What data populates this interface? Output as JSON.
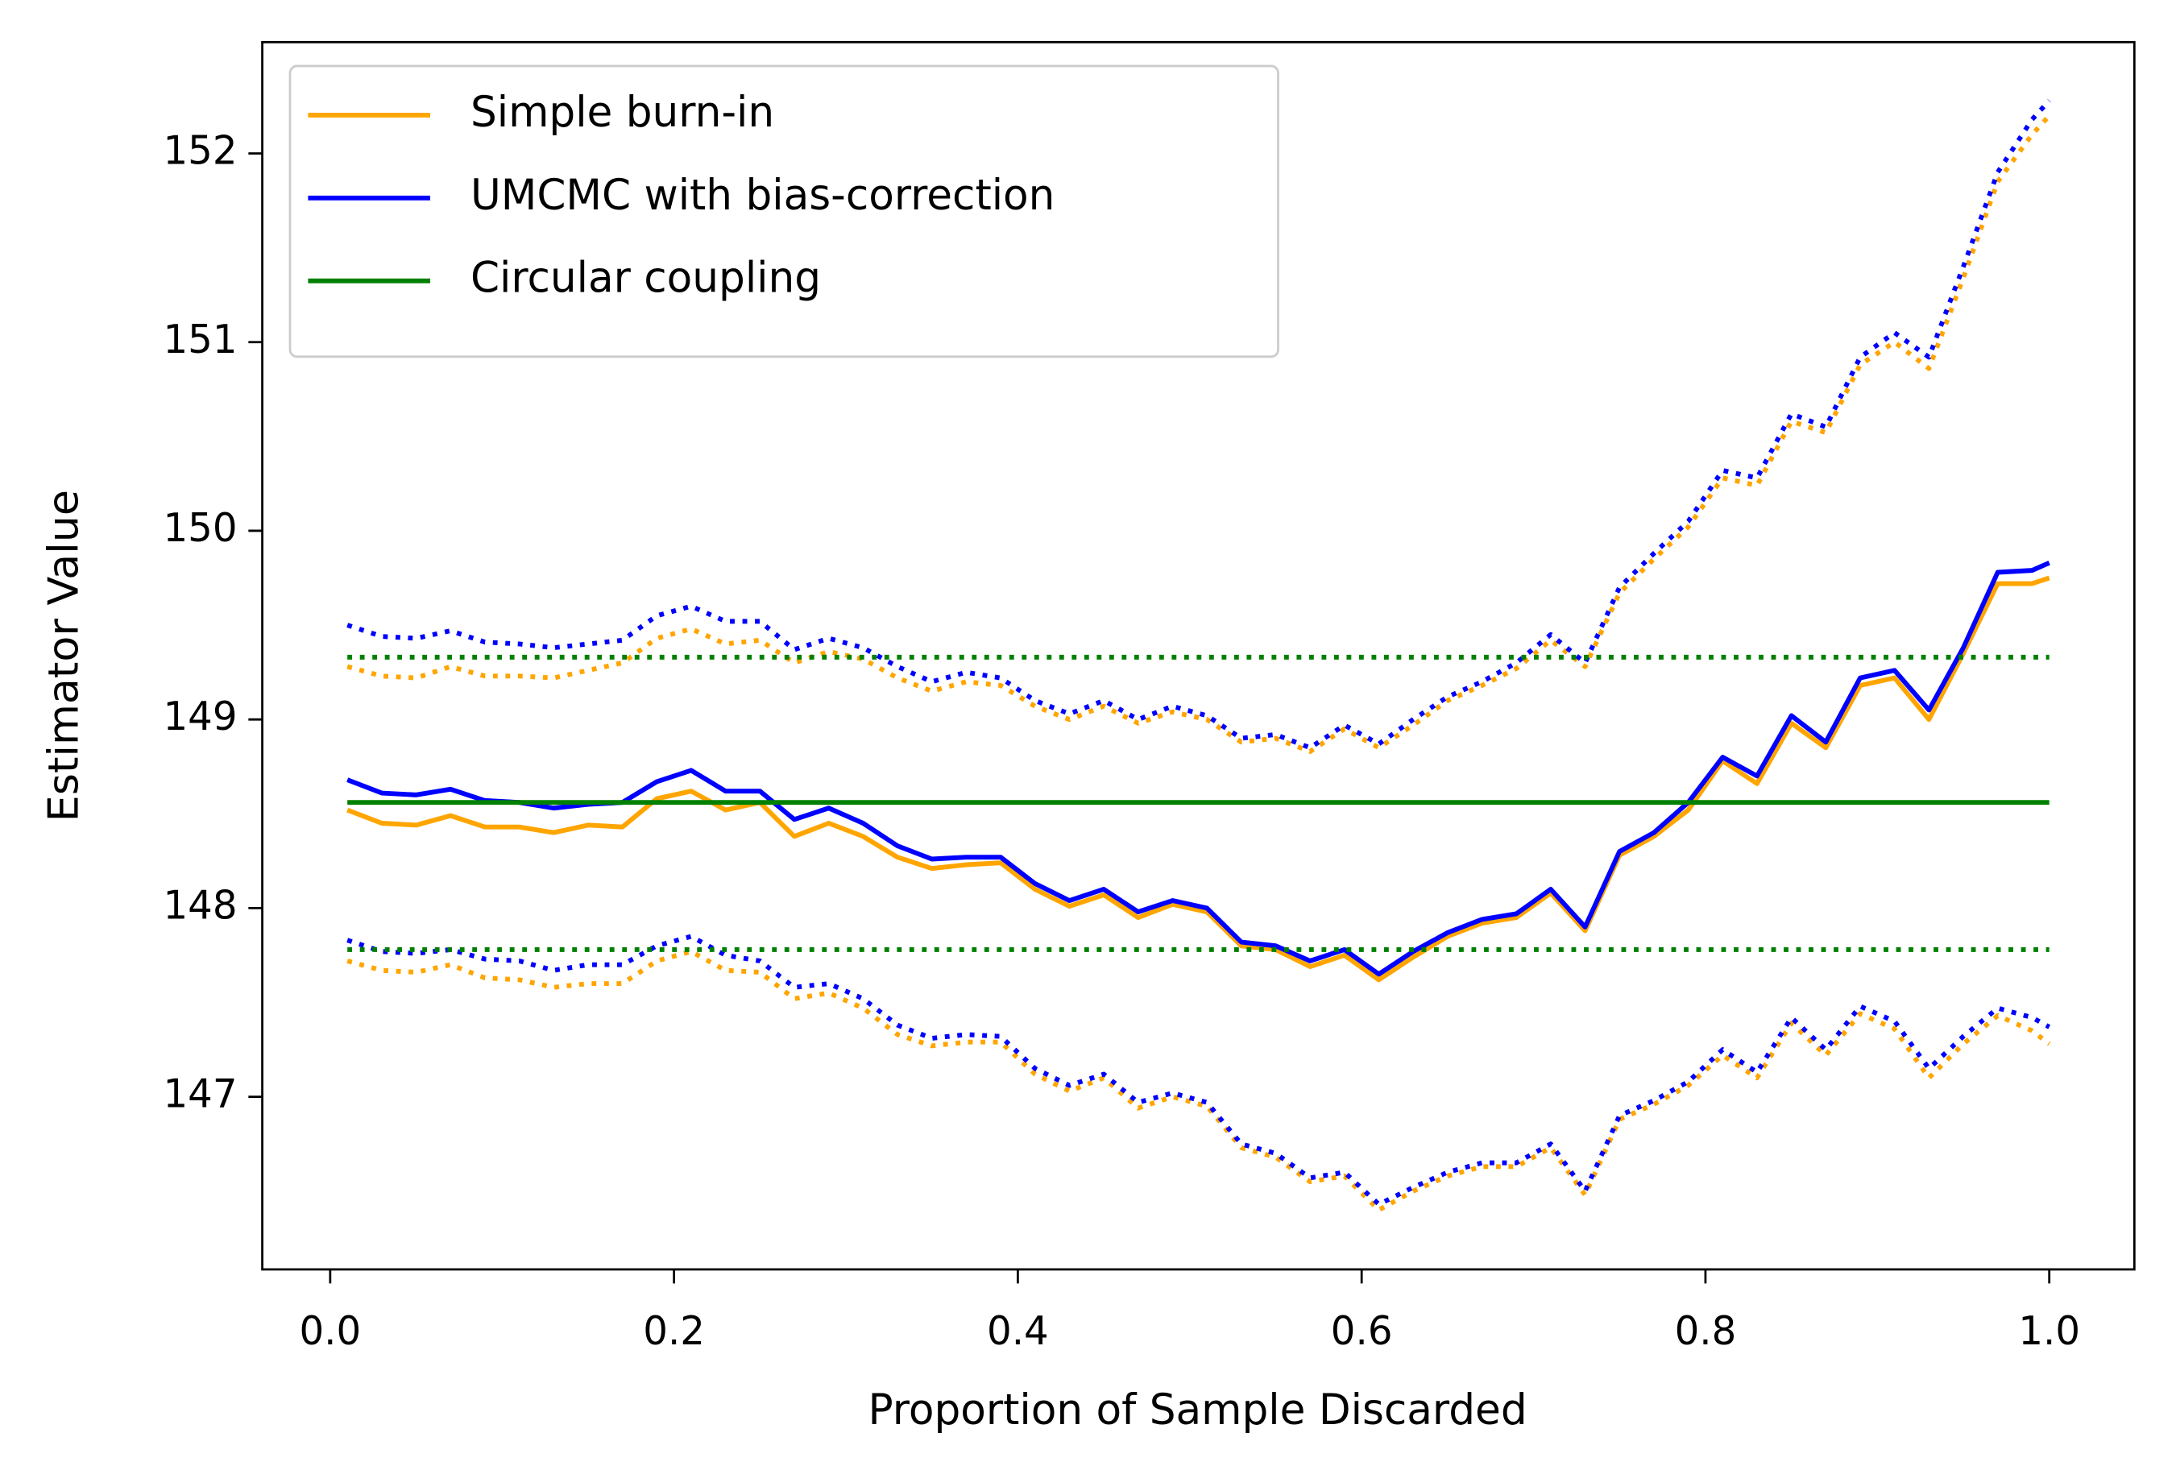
{
  "chart_data": {
    "type": "line",
    "xlabel": "Proportion of Sample Discarded",
    "ylabel": "Estimator Value",
    "xlim": [
      -0.0395,
      1.0495
    ],
    "ylim": [
      146.085,
      152.59
    ],
    "xticks": [
      {
        "value": 0,
        "label": "0.0"
      },
      0.2,
      0.4,
      0.6,
      0.8,
      {
        "value": 1,
        "label": "1.0"
      }
    ],
    "yticks": [
      147,
      148,
      149,
      150,
      151,
      152
    ],
    "grid": false,
    "legend": "upper left",
    "x": [
      0.01,
      0.03,
      0.05,
      0.07,
      0.09,
      0.11,
      0.13,
      0.15,
      0.17,
      0.19,
      0.21,
      0.23,
      0.25,
      0.27,
      0.29,
      0.31,
      0.33,
      0.35,
      0.37,
      0.39,
      0.41,
      0.43,
      0.45,
      0.47,
      0.49,
      0.51,
      0.53,
      0.55,
      0.57,
      0.59,
      0.61,
      0.63,
      0.65,
      0.67,
      0.69,
      0.71,
      0.73,
      0.75,
      0.77,
      0.79,
      0.81,
      0.83,
      0.85,
      0.87,
      0.89,
      0.91,
      0.93,
      0.95,
      0.97,
      0.99,
      1.0
    ],
    "series": [
      {
        "name": "Simple burn-in",
        "color": "#ffa500",
        "style": "solid",
        "values": [
          148.52,
          148.45,
          148.44,
          148.49,
          148.43,
          148.43,
          148.4,
          148.44,
          148.43,
          148.58,
          148.62,
          148.52,
          148.56,
          148.38,
          148.45,
          148.38,
          148.27,
          148.21,
          148.23,
          148.24,
          148.1,
          148.01,
          148.07,
          147.95,
          148.02,
          147.98,
          147.8,
          147.78,
          147.69,
          147.75,
          147.62,
          147.74,
          147.85,
          147.92,
          147.95,
          148.08,
          147.88,
          148.28,
          148.38,
          148.52,
          148.78,
          148.66,
          148.98,
          148.85,
          149.18,
          149.22,
          149.0,
          149.35,
          149.72,
          149.72,
          149.75
        ]
      },
      {
        "name": "UMCMC with bias-correction",
        "color": "#0000ff",
        "style": "solid",
        "values": [
          148.68,
          148.61,
          148.6,
          148.63,
          148.57,
          148.56,
          148.53,
          148.55,
          148.56,
          148.67,
          148.73,
          148.62,
          148.62,
          148.47,
          148.53,
          148.45,
          148.33,
          148.26,
          148.27,
          148.27,
          148.13,
          148.04,
          148.1,
          147.98,
          148.04,
          148.0,
          147.82,
          147.8,
          147.72,
          147.78,
          147.65,
          147.77,
          147.87,
          147.94,
          147.97,
          148.1,
          147.9,
          148.3,
          148.4,
          148.56,
          148.8,
          148.7,
          149.02,
          148.88,
          149.22,
          149.26,
          149.05,
          149.38,
          149.78,
          149.79,
          149.83
        ]
      },
      {
        "name": "Circular coupling",
        "color": "#008000",
        "style": "solid",
        "x": [
          0.01,
          1.0
        ],
        "values": [
          148.56,
          148.56
        ]
      },
      {
        "color": "#ffa500",
        "style": "dotted",
        "values": [
          149.28,
          149.23,
          149.22,
          149.28,
          149.23,
          149.23,
          149.22,
          149.26,
          149.3,
          149.43,
          149.48,
          149.4,
          149.42,
          149.3,
          149.36,
          149.32,
          149.22,
          149.15,
          149.2,
          149.18,
          149.07,
          149.0,
          149.07,
          148.98,
          149.04,
          149.0,
          148.88,
          148.9,
          148.83,
          148.95,
          148.85,
          148.97,
          149.1,
          149.18,
          149.27,
          149.42,
          149.28,
          149.67,
          149.85,
          150.02,
          150.28,
          150.24,
          150.58,
          150.52,
          150.88,
          151.0,
          150.86,
          151.34,
          151.85,
          152.1,
          152.2
        ]
      },
      {
        "color": "#ffa500",
        "style": "dotted",
        "values": [
          147.72,
          147.67,
          147.66,
          147.7,
          147.63,
          147.62,
          147.58,
          147.6,
          147.6,
          147.72,
          147.77,
          147.67,
          147.66,
          147.52,
          147.55,
          147.47,
          147.33,
          147.27,
          147.29,
          147.29,
          147.12,
          147.03,
          147.1,
          146.94,
          147.0,
          146.95,
          146.73,
          146.68,
          146.55,
          146.58,
          146.4,
          146.5,
          146.58,
          146.63,
          146.63,
          146.73,
          146.48,
          146.88,
          146.96,
          147.06,
          147.22,
          147.1,
          147.39,
          147.22,
          147.44,
          147.36,
          147.1,
          147.28,
          147.43,
          147.35,
          147.28
        ]
      },
      {
        "color": "#0000ff",
        "style": "dotted",
        "values": [
          149.5,
          149.44,
          149.43,
          149.47,
          149.41,
          149.4,
          149.38,
          149.4,
          149.42,
          149.55,
          149.6,
          149.52,
          149.52,
          149.37,
          149.43,
          149.38,
          149.28,
          149.2,
          149.25,
          149.22,
          149.1,
          149.03,
          149.1,
          149.0,
          149.07,
          149.02,
          148.9,
          148.92,
          148.85,
          148.97,
          148.87,
          149.0,
          149.12,
          149.2,
          149.3,
          149.45,
          149.3,
          149.7,
          149.88,
          150.05,
          150.32,
          150.28,
          150.62,
          150.55,
          150.92,
          151.05,
          150.92,
          151.4,
          151.9,
          152.18,
          152.28
        ]
      },
      {
        "color": "#0000ff",
        "style": "dotted",
        "values": [
          147.83,
          147.77,
          147.76,
          147.78,
          147.73,
          147.72,
          147.67,
          147.7,
          147.7,
          147.8,
          147.85,
          147.75,
          147.72,
          147.58,
          147.6,
          147.52,
          147.38,
          147.31,
          147.33,
          147.32,
          147.15,
          147.06,
          147.12,
          146.97,
          147.02,
          146.97,
          146.75,
          146.7,
          146.57,
          146.6,
          146.43,
          146.52,
          146.6,
          146.65,
          146.65,
          146.75,
          146.5,
          146.9,
          146.98,
          147.08,
          147.25,
          147.13,
          147.42,
          147.25,
          147.48,
          147.4,
          147.15,
          147.32,
          147.47,
          147.42,
          147.37
        ]
      },
      {
        "color": "#008000",
        "style": "dotted",
        "x": [
          0.01,
          1.0
        ],
        "values": [
          149.33,
          149.33
        ]
      },
      {
        "color": "#008000",
        "style": "dotted",
        "x": [
          0.01,
          1.0
        ],
        "values": [
          147.78,
          147.78
        ]
      }
    ]
  }
}
